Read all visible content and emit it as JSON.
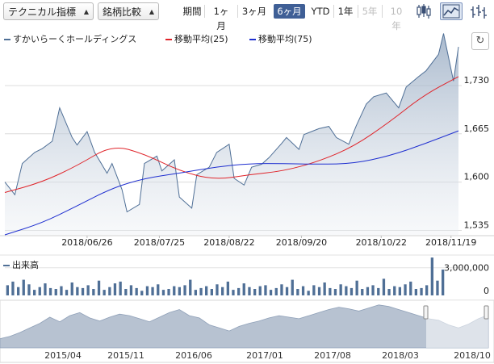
{
  "toolbar": {
    "technical_select": "テクニカル指標",
    "compare_select": "銘柄比較",
    "period_label": "期間",
    "periods": [
      "1ヶ月",
      "3ヶ月",
      "6ヶ月",
      "YTD",
      "1年",
      "5年",
      "10年"
    ],
    "active_period": "6ヶ月",
    "disabled_periods": [
      "5年",
      "10年"
    ],
    "chart_styles": [
      "candlestick-icon",
      "area-chart-icon",
      "bar-chart-icon"
    ],
    "active_style": "area-chart-icon"
  },
  "legend": {
    "price": "すかいらーくホールディングス",
    "ma25": "移動平均(25)",
    "ma75": "移動平均(75)",
    "refresh_icon": "refresh-icon"
  },
  "colors": {
    "price_line": "#4f6f96",
    "price_fill": "#c9d2de",
    "ma25": "#e0242a",
    "ma75": "#1f2fd0",
    "volume": "#4f6f96",
    "navigator_fill": "#b7c2d1",
    "active_button": "#3f5f96"
  },
  "chart_data": [
    {
      "type": "area",
      "title": "",
      "y_ticks": [
        1535,
        1600,
        1665,
        1730
      ],
      "ylim": [
        1529,
        1806
      ],
      "x_ticks": [
        "2018/06/26",
        "2018/07/25",
        "2018/08/22",
        "2018/09/20",
        "2018/10/22",
        "2018/11/19"
      ],
      "grid": true,
      "series": [
        {
          "name": "すかいらーくホールディングス",
          "x": [
            "2018/05/24",
            "2018/05/28",
            "2018/05/31",
            "2018/06/05",
            "2018/06/08",
            "2018/06/12",
            "2018/06/15",
            "2018/06/20",
            "2018/06/22",
            "2018/06/26",
            "2018/06/29",
            "2018/07/04",
            "2018/07/06",
            "2018/07/10",
            "2018/07/12",
            "2018/07/17",
            "2018/07/19",
            "2018/07/24",
            "2018/07/26",
            "2018/07/31",
            "2018/08/02",
            "2018/08/07",
            "2018/08/09",
            "2018/08/14",
            "2018/08/17",
            "2018/08/22",
            "2018/08/24",
            "2018/08/28",
            "2018/08/31",
            "2018/09/04",
            "2018/09/07",
            "2018/09/12",
            "2018/09/14",
            "2018/09/19",
            "2018/09/21",
            "2018/09/27",
            "2018/10/01",
            "2018/10/04",
            "2018/10/09",
            "2018/10/12",
            "2018/10/16",
            "2018/10/19",
            "2018/10/24",
            "2018/10/29",
            "2018/11/01",
            "2018/11/06",
            "2018/11/09",
            "2018/11/14",
            "2018/11/16",
            "2018/11/20",
            "2018/11/22"
          ],
          "values": [
            1600,
            1583,
            1625,
            1640,
            1645,
            1655,
            1700,
            1660,
            1650,
            1668,
            1640,
            1612,
            1625,
            1590,
            1560,
            1570,
            1625,
            1635,
            1615,
            1630,
            1580,
            1565,
            1610,
            1620,
            1640,
            1651,
            1605,
            1596,
            1620,
            1624,
            1633,
            1652,
            1660,
            1644,
            1664,
            1672,
            1675,
            1660,
            1651,
            1676,
            1705,
            1715,
            1720,
            1700,
            1728,
            1742,
            1750,
            1772,
            1800,
            1736,
            1782
          ]
        },
        {
          "name": "移動平均(25)",
          "x": [
            "2018/05/24",
            "2018/06/08",
            "2018/06/22",
            "2018/07/06",
            "2018/07/19",
            "2018/08/02",
            "2018/08/16",
            "2018/08/30",
            "2018/09/13",
            "2018/09/27",
            "2018/10/11",
            "2018/10/25",
            "2018/11/08",
            "2018/11/22"
          ],
          "values": [
            1586,
            1600,
            1622,
            1650,
            1638,
            1615,
            1603,
            1610,
            1615,
            1628,
            1648,
            1680,
            1717,
            1742
          ]
        },
        {
          "name": "移動平均(75)",
          "x": [
            "2018/05/24",
            "2018/06/08",
            "2018/06/22",
            "2018/07/06",
            "2018/07/19",
            "2018/08/02",
            "2018/08/16",
            "2018/08/30",
            "2018/09/13",
            "2018/09/27",
            "2018/10/11",
            "2018/10/25",
            "2018/11/08",
            "2018/11/22"
          ],
          "values": [
            1529,
            1545,
            1568,
            1592,
            1605,
            1612,
            1620,
            1625,
            1625,
            1624,
            1625,
            1635,
            1651,
            1669
          ]
        }
      ]
    },
    {
      "type": "bar",
      "title": "出来高",
      "y_ticks": [
        0,
        3000000
      ],
      "ylim": [
        0,
        4200000
      ],
      "series": [
        {
          "name": "出来高",
          "values": [
            1100000,
            1500000,
            900000,
            1700000,
            1200000,
            600000,
            900000,
            1300000,
            800000,
            700000,
            1000000,
            600000,
            1400000,
            900000,
            800000,
            1100000,
            700000,
            1600000,
            600000,
            900000,
            1300000,
            1500000,
            700000,
            1100000,
            800000,
            500000,
            1000000,
            900000,
            1200000,
            600000,
            700000,
            1000000,
            900000,
            1100000,
            1700000,
            600000,
            800000,
            1000000,
            700000,
            1200000,
            900000,
            1500000,
            600000,
            800000,
            1300000,
            900000,
            700000,
            1000000,
            1100000,
            600000,
            800000,
            1200000,
            900000,
            1700000,
            700000,
            1000000,
            500000,
            1100000,
            900000,
            1400000,
            800000,
            700000,
            1200000,
            1000000,
            800000,
            1600000,
            700000,
            900000,
            1100000,
            800000,
            1800000,
            700000,
            1000000,
            900000,
            1200000,
            1500000,
            700000,
            800000,
            1100000,
            4100000,
            1600000,
            2800000
          ]
        }
      ]
    },
    {
      "type": "area",
      "title": "",
      "x_ticks": [
        "2015/04",
        "2015/11",
        "2016/06",
        "2017/01",
        "2017/08",
        "2018/03",
        "2018/10"
      ],
      "series": [
        {
          "name": "",
          "values": [
            1420,
            1450,
            1500,
            1560,
            1620,
            1700,
            1640,
            1720,
            1760,
            1690,
            1650,
            1700,
            1740,
            1720,
            1680,
            1640,
            1700,
            1760,
            1800,
            1720,
            1690,
            1600,
            1560,
            1520,
            1580,
            1620,
            1650,
            1690,
            1720,
            1700,
            1680,
            1720,
            1760,
            1800,
            1830,
            1810,
            1780,
            1820,
            1860,
            1840,
            1800,
            1760,
            1720,
            1680,
            1660,
            1600,
            1560,
            1610,
            1680,
            1730
          ]
        }
      ]
    }
  ]
}
